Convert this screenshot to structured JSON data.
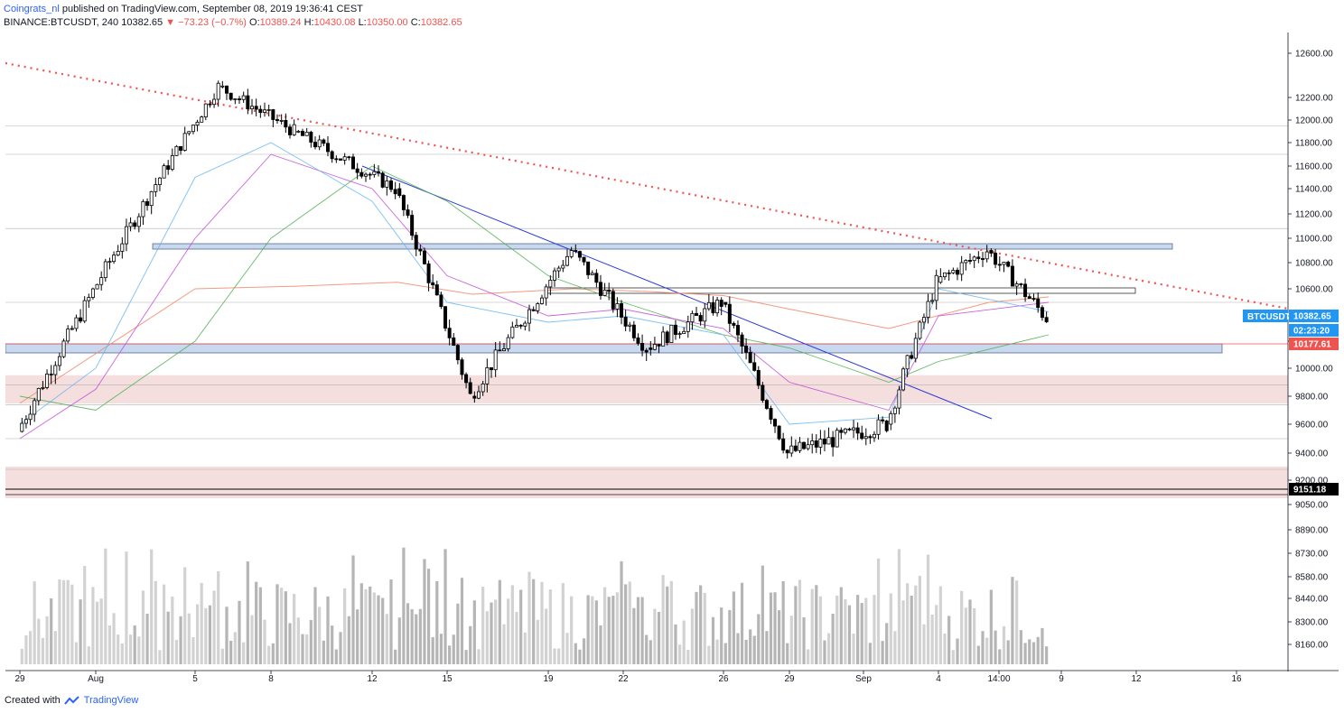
{
  "header": {
    "author": "Coingrats_nl",
    "published_text": "published on TradingView.com, September 08, 2019 19:36:41 CEST",
    "symbol": "BINANCE:BTCUSDT, 240",
    "last": "10382.65",
    "change": "−73.23 (−0.7%)",
    "o_label": "O:",
    "o_value": "10389.24",
    "h_label": "H:",
    "h_value": "10430.08",
    "l_label": "L:",
    "l_value": "10350.00",
    "c_label": "C:",
    "c_value": "10382.65"
  },
  "footer": {
    "created_with": "Created with",
    "brand": "TradingView"
  },
  "colors": {
    "up": "#ffffff",
    "down": "#000000",
    "trend_red": "#ef5350",
    "trend_blue": "#2a3ad6",
    "support_fill": "#c7d8ef",
    "zone_pink": "#f2d6d6"
  },
  "chart_data": {
    "type": "candlestick",
    "symbol": "BTCUSDT",
    "interval": "240",
    "last_price_label": "10382.65",
    "countdown_label": "02:23:20",
    "red_level_label": "10177.61",
    "black_level_label": "9151.18",
    "y_ticks": [
      "12600.00",
      "12200.00",
      "12000.00",
      "11800.00",
      "11600.00",
      "11400.00",
      "11200.00",
      "11000.00",
      "10800.00",
      "10600.00",
      "10400.00",
      "10200.00",
      "10000.00",
      "9800.00",
      "9600.00",
      "9400.00",
      "9200.00",
      "9050.00",
      "8890.00",
      "8730.00",
      "8580.00",
      "8440.00",
      "8300.00",
      "8160.00"
    ],
    "x_ticks": [
      "29",
      "Aug",
      "5",
      "8",
      "12",
      "15",
      "19",
      "22",
      "26",
      "29",
      "Sep",
      "4",
      "14:00",
      "9",
      "12",
      "16"
    ],
    "price_ylim": [
      9151.18,
      12700
    ],
    "key_points": [
      {
        "date": "Jul 29",
        "price": 9550
      },
      {
        "date": "Aug 6",
        "price": 12300
      },
      {
        "date": "Aug 9",
        "price": 11900
      },
      {
        "date": "Aug 13",
        "price": 11400
      },
      {
        "date": "Aug 16",
        "price": 9800
      },
      {
        "date": "Aug 20",
        "price": 10900
      },
      {
        "date": "Aug 23",
        "price": 10150
      },
      {
        "date": "Aug 26",
        "price": 10500
      },
      {
        "date": "Aug 29",
        "price": 9400
      },
      {
        "date": "Sep 2",
        "price": 9600
      },
      {
        "date": "Sep 4",
        "price": 10650
      },
      {
        "date": "Sep 6",
        "price": 10900
      },
      {
        "date": "Sep 8",
        "price": 10382.65
      }
    ]
  }
}
